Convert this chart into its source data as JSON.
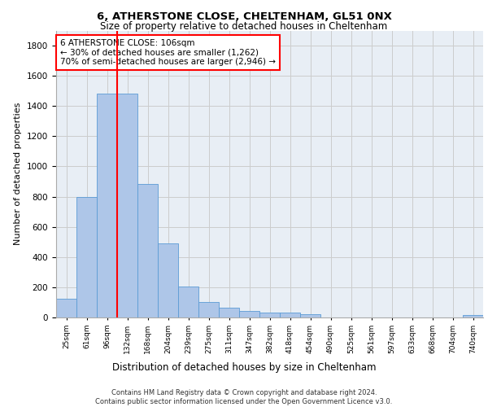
{
  "title1": "6, ATHERSTONE CLOSE, CHELTENHAM, GL51 0NX",
  "title2": "Size of property relative to detached houses in Cheltenham",
  "xlabel": "Distribution of detached houses by size in Cheltenham",
  "ylabel": "Number of detached properties",
  "footnote": "Contains HM Land Registry data © Crown copyright and database right 2024.\nContains public sector information licensed under the Open Government Licence v3.0.",
  "bar_labels": [
    "25sqm",
    "61sqm",
    "96sqm",
    "132sqm",
    "168sqm",
    "204sqm",
    "239sqm",
    "275sqm",
    "311sqm",
    "347sqm",
    "382sqm",
    "418sqm",
    "454sqm",
    "490sqm",
    "525sqm",
    "561sqm",
    "597sqm",
    "633sqm",
    "668sqm",
    "704sqm",
    "740sqm"
  ],
  "bar_values": [
    125,
    800,
    1480,
    1480,
    885,
    490,
    205,
    105,
    65,
    45,
    35,
    30,
    20,
    0,
    0,
    0,
    0,
    0,
    0,
    0,
    15
  ],
  "bar_color": "#aec6e8",
  "bar_edge_color": "#5b9bd5",
  "grid_color": "#cccccc",
  "red_line_index": 2,
  "annotation_text": "6 ATHERSTONE CLOSE: 106sqm\n← 30% of detached houses are smaller (1,262)\n70% of semi-detached houses are larger (2,946) →",
  "annotation_box_color": "white",
  "annotation_box_edge_color": "red",
  "ylim": [
    0,
    1900
  ],
  "yticks": [
    0,
    200,
    400,
    600,
    800,
    1000,
    1200,
    1400,
    1600,
    1800
  ],
  "background_color": "#e8eef5"
}
